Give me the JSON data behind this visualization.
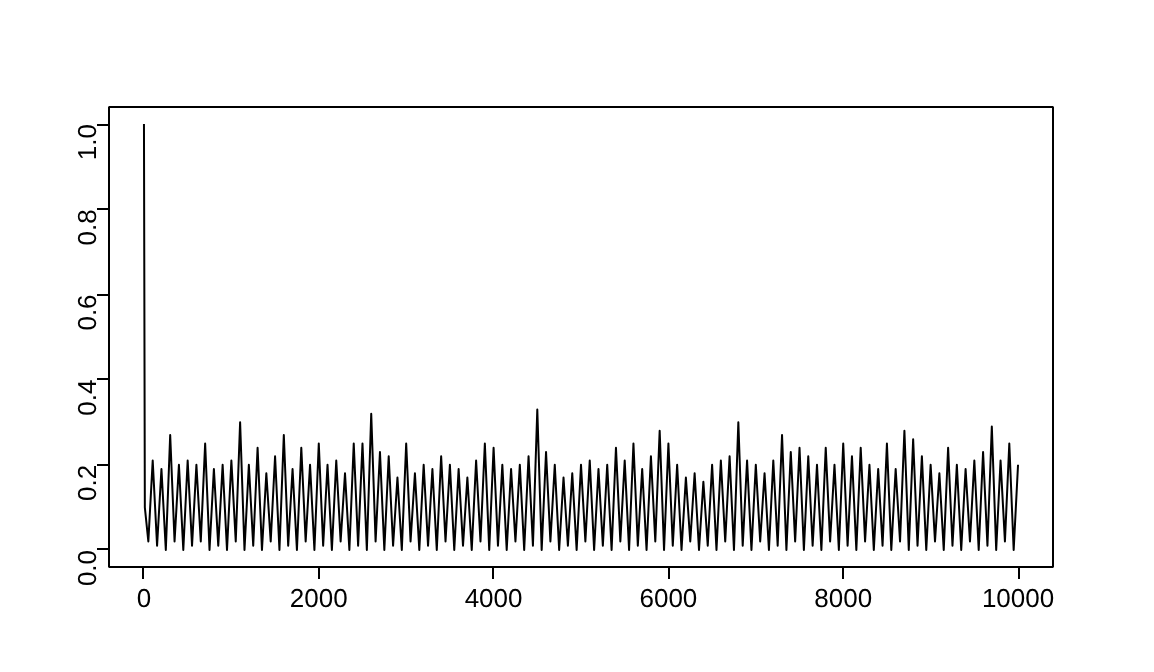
{
  "chart_data": {
    "type": "line",
    "x": [
      0,
      10,
      50,
      100,
      150,
      200,
      250,
      300,
      350,
      400,
      450,
      500,
      550,
      600,
      650,
      700,
      750,
      800,
      850,
      900,
      950,
      1000,
      1050,
      1100,
      1150,
      1200,
      1250,
      1300,
      1350,
      1400,
      1450,
      1500,
      1550,
      1600,
      1650,
      1700,
      1750,
      1800,
      1850,
      1900,
      1950,
      2000,
      2050,
      2100,
      2150,
      2200,
      2250,
      2300,
      2350,
      2400,
      2450,
      2500,
      2550,
      2600,
      2650,
      2700,
      2750,
      2800,
      2850,
      2900,
      2950,
      3000,
      3050,
      3100,
      3150,
      3200,
      3250,
      3300,
      3350,
      3400,
      3450,
      3500,
      3550,
      3600,
      3650,
      3700,
      3750,
      3800,
      3850,
      3900,
      3950,
      4000,
      4050,
      4100,
      4150,
      4200,
      4250,
      4300,
      4350,
      4400,
      4450,
      4500,
      4550,
      4600,
      4650,
      4700,
      4750,
      4800,
      4850,
      4900,
      4950,
      5000,
      5050,
      5100,
      5150,
      5200,
      5250,
      5300,
      5350,
      5400,
      5450,
      5500,
      5550,
      5600,
      5650,
      5700,
      5750,
      5800,
      5850,
      5900,
      5950,
      6000,
      6050,
      6100,
      6150,
      6200,
      6250,
      6300,
      6350,
      6400,
      6450,
      6500,
      6550,
      6600,
      6650,
      6700,
      6750,
      6800,
      6850,
      6900,
      6950,
      7000,
      7050,
      7100,
      7150,
      7200,
      7250,
      7300,
      7350,
      7400,
      7450,
      7500,
      7550,
      7600,
      7650,
      7700,
      7750,
      7800,
      7850,
      7900,
      7950,
      8000,
      8050,
      8100,
      8150,
      8200,
      8250,
      8300,
      8350,
      8400,
      8450,
      8500,
      8550,
      8600,
      8650,
      8700,
      8750,
      8800,
      8850,
      8900,
      8950,
      9000,
      9050,
      9100,
      9150,
      9200,
      9250,
      9300,
      9350,
      9400,
      9450,
      9500,
      9550,
      9600,
      9650,
      9700,
      9750,
      9800,
      9850,
      9900,
      9950,
      10000
    ],
    "values": [
      1.0,
      0.1,
      0.02,
      0.21,
      0.01,
      0.19,
      0.0,
      0.27,
      0.02,
      0.2,
      0.0,
      0.21,
      0.01,
      0.2,
      0.02,
      0.25,
      0.0,
      0.19,
      0.01,
      0.2,
      0.0,
      0.21,
      0.02,
      0.3,
      0.0,
      0.2,
      0.01,
      0.24,
      0.0,
      0.18,
      0.02,
      0.22,
      0.0,
      0.27,
      0.01,
      0.19,
      0.0,
      0.24,
      0.02,
      0.2,
      0.0,
      0.25,
      0.01,
      0.2,
      0.0,
      0.21,
      0.02,
      0.18,
      0.0,
      0.25,
      0.01,
      0.25,
      0.0,
      0.32,
      0.02,
      0.23,
      0.0,
      0.22,
      0.01,
      0.17,
      0.0,
      0.25,
      0.02,
      0.18,
      0.0,
      0.2,
      0.01,
      0.19,
      0.0,
      0.22,
      0.02,
      0.2,
      0.0,
      0.19,
      0.01,
      0.17,
      0.0,
      0.21,
      0.02,
      0.25,
      0.0,
      0.24,
      0.01,
      0.2,
      0.0,
      0.19,
      0.02,
      0.2,
      0.0,
      0.22,
      0.01,
      0.33,
      0.0,
      0.23,
      0.02,
      0.2,
      0.0,
      0.17,
      0.01,
      0.18,
      0.0,
      0.2,
      0.02,
      0.21,
      0.0,
      0.19,
      0.01,
      0.2,
      0.0,
      0.24,
      0.02,
      0.21,
      0.0,
      0.25,
      0.01,
      0.19,
      0.0,
      0.22,
      0.02,
      0.28,
      0.0,
      0.25,
      0.01,
      0.2,
      0.0,
      0.17,
      0.02,
      0.18,
      0.0,
      0.16,
      0.01,
      0.2,
      0.0,
      0.21,
      0.02,
      0.22,
      0.0,
      0.3,
      0.01,
      0.21,
      0.0,
      0.2,
      0.02,
      0.18,
      0.0,
      0.21,
      0.01,
      0.27,
      0.0,
      0.23,
      0.02,
      0.24,
      0.0,
      0.22,
      0.01,
      0.2,
      0.0,
      0.24,
      0.02,
      0.2,
      0.0,
      0.25,
      0.01,
      0.22,
      0.0,
      0.24,
      0.02,
      0.2,
      0.0,
      0.19,
      0.01,
      0.25,
      0.0,
      0.19,
      0.02,
      0.28,
      0.0,
      0.26,
      0.01,
      0.22,
      0.0,
      0.2,
      0.02,
      0.18,
      0.0,
      0.24,
      0.01,
      0.2,
      0.0,
      0.19,
      0.02,
      0.21,
      0.0,
      0.23,
      0.01,
      0.29,
      0.0,
      0.21,
      0.02,
      0.25,
      0.0,
      0.2
    ],
    "color": "#000000",
    "xlim": [
      -400,
      10400
    ],
    "ylim": [
      -0.04,
      1.04
    ],
    "xticks": [
      0,
      2000,
      4000,
      6000,
      8000,
      10000
    ],
    "yticks": [
      {
        "value": 0,
        "label": "0.0"
      },
      {
        "value": 0.2,
        "label": "0.2"
      },
      {
        "value": 0.4,
        "label": "0.4"
      },
      {
        "value": 0.6,
        "label": "0.6"
      },
      {
        "value": 0.8,
        "label": "0.8"
      },
      {
        "value": 1,
        "label": "1.0"
      }
    ],
    "grid": false,
    "marker": "none",
    "line_style": "solid"
  }
}
